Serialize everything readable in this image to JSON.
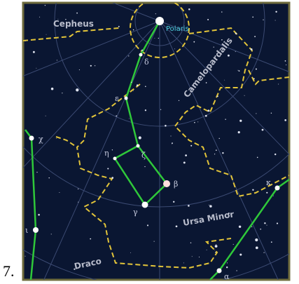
{
  "label": "7.",
  "map": {
    "constellations": [
      "Cepheus",
      "Camelopardalis",
      "Ursa Minor",
      "Draco"
    ],
    "stars": [
      "Polaris",
      "δ",
      "ε",
      "ζ",
      "η",
      "β",
      "γ",
      "χ",
      "ι",
      "κ",
      "α"
    ]
  }
}
